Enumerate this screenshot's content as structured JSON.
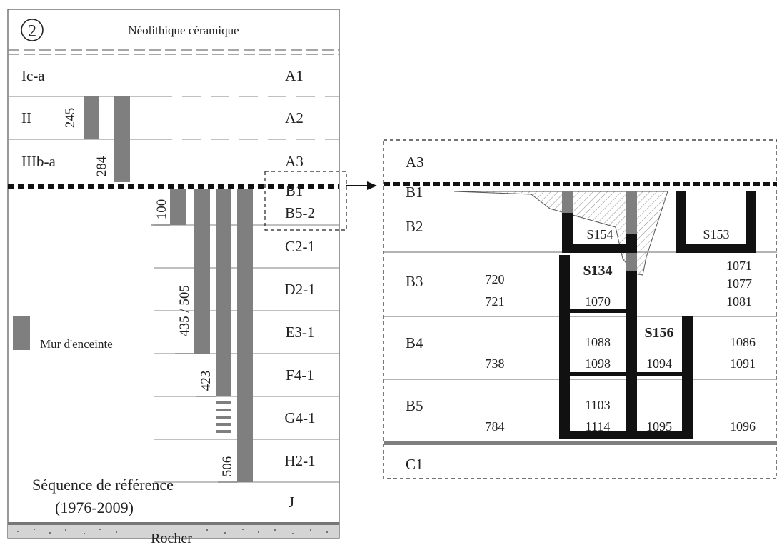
{
  "left_panel": {
    "circle_number": "2",
    "header": "Néolithique céramique",
    "phases": [
      "Ic-a",
      "II",
      "IIIb-a"
    ],
    "layers": [
      "A1",
      "A2",
      "A3",
      "B1",
      "B5-2",
      "C2-1",
      "D2-1",
      "E3-1",
      "F4-1",
      "G4-1",
      "H2-1",
      "J"
    ],
    "wall_labels": [
      "245",
      "284",
      "100",
      "435 / 505",
      "423",
      "506"
    ],
    "legend_label": "Mur d'enceinte",
    "caption_line1": "Séquence de référence",
    "caption_line2": "(1976-2009)",
    "bedrock": "Rocher"
  },
  "right_panel": {
    "layers": [
      "A3",
      "B1",
      "B2",
      "B3",
      "B4",
      "B5",
      "C1"
    ],
    "structures": {
      "s154": "S154",
      "s153": "S153",
      "s134": "S134",
      "s156": "S156"
    },
    "numbers": {
      "n720": "720",
      "n721": "721",
      "n1070": "1070",
      "n1071": "1071",
      "n1077": "1077",
      "n1081": "1081",
      "n1088": "1088",
      "n1098": "1098",
      "n738": "738",
      "n1094": "1094",
      "n1086": "1086",
      "n1091": "1091",
      "n1103": "1103",
      "n1114": "1114",
      "n784": "784",
      "n1095": "1095",
      "n1096": "1096"
    }
  },
  "colors": {
    "wall": "#7f7f7f",
    "ink": "#222222",
    "line": "#9a9a9a",
    "rock": "#d4d4d4"
  }
}
